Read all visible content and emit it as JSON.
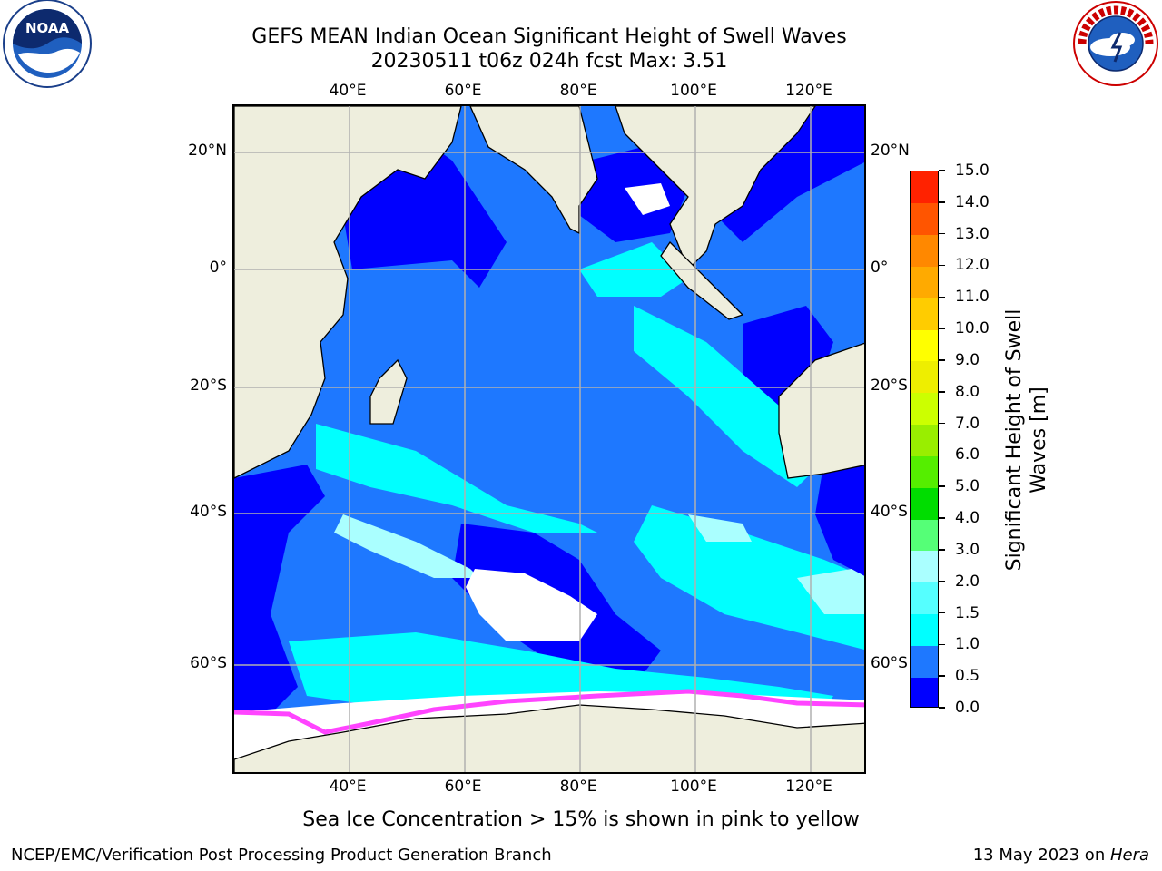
{
  "title": {
    "line1": "GEFS MEAN Indian Ocean Significant Height of Swell Waves",
    "line2": "20230511 t06z 024h fcst   Max: 3.51"
  },
  "map": {
    "lon_labels": [
      "40°E",
      "60°E",
      "80°E",
      "100°E",
      "120°E"
    ],
    "lat_labels": [
      "20°N",
      "0°",
      "20°S",
      "40°S",
      "60°S"
    ],
    "colors": {
      "land": "#eeeedd",
      "deep_blue": "#0000ff",
      "mid_blue": "#1e78ff",
      "cyan": "#00ffff",
      "light_cyan": "#55ffff",
      "pale_cyan": "#aaffff",
      "sea_ice_pink": "#ff44ff",
      "sea_ice_yellow": "#ffcc33",
      "grid": "#b0b0b0"
    }
  },
  "colorbar": {
    "label": "Significant Height of Swell Waves [m]",
    "ticks": [
      "0.0",
      "0.5",
      "1.0",
      "1.5",
      "2.0",
      "3.0",
      "4.0",
      "5.0",
      "6.0",
      "7.0",
      "8.0",
      "9.0",
      "10.0",
      "11.0",
      "12.0",
      "13.0",
      "14.0",
      "15.0"
    ],
    "colors": [
      "#0000ff",
      "#1e78ff",
      "#00ffff",
      "#55ffff",
      "#aaffff",
      "#55ff77",
      "#00dd00",
      "#55ee00",
      "#99ee00",
      "#ccff00",
      "#eeee00",
      "#ffff00",
      "#ffcc00",
      "#ffaa00",
      "#ff8800",
      "#ff5500",
      "#ff2200"
    ]
  },
  "footer": {
    "note": "Sea Ice Concentration > 15% is shown in pink to yellow",
    "left": "NCEP/EMC/Verification Post Processing Product Generation Branch",
    "right_date": "13 May 2023 on ",
    "right_host": "Hera"
  },
  "logos": {
    "noaa": "NOAA",
    "nws_text": "NATIONAL WEATHER SERVICE"
  }
}
